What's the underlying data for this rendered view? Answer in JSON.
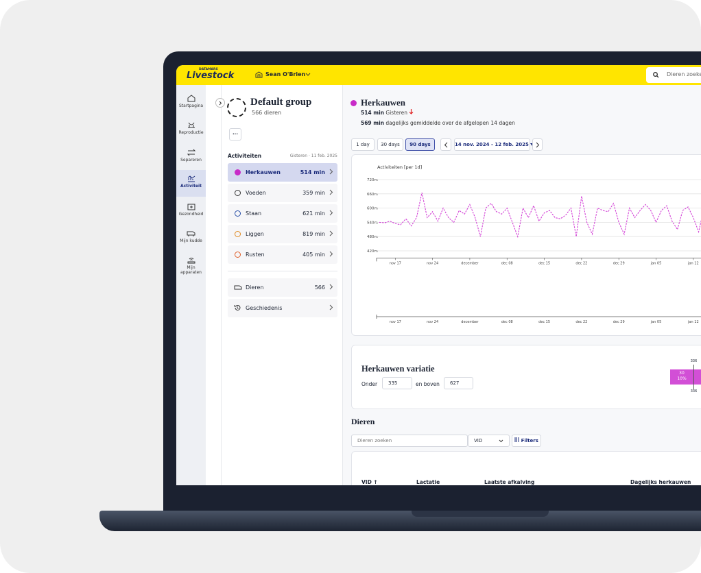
{
  "header": {
    "brand_top": "DATAMARS",
    "brand": "Livestock",
    "user": "Sean O'Brien",
    "search": "Dieren zoeken"
  },
  "nav": [
    "Startpagina",
    "Reproductie",
    "Separeren",
    "Activiteit",
    "Gezondheid",
    "Mijn kudde",
    "Mijn apparaten"
  ],
  "group": {
    "title": "Default group",
    "count": "566 dieren",
    "menu": "···"
  },
  "activities": {
    "title": "Activiteiten",
    "date": "Gisteren · 11 feb. 2025",
    "items": [
      {
        "label": "Herkauwen",
        "value": "514 min"
      },
      {
        "label": "Voeden",
        "value": "359 min"
      },
      {
        "label": "Staan",
        "value": "621 min"
      },
      {
        "label": "Liggen",
        "value": "819 min"
      },
      {
        "label": "Rusten",
        "value": "405 min"
      }
    ]
  },
  "links": [
    {
      "label": "Dieren",
      "value": "566"
    },
    {
      "label": "Geschiedenis"
    }
  ],
  "detail": {
    "title": "Herkauwen",
    "today_value": "514 min",
    "today_label": "Gisteren",
    "avg_value": "569 min",
    "avg_label": "dagelijks gemiddelde over de afgelopen 14 dagen",
    "ranges": [
      "1 day",
      "30 days",
      "90 days"
    ],
    "date_range": "14 nov. 2024 - 12 feb. 2025"
  },
  "chart_data": {
    "type": "line",
    "title": "Activiteiten [per 1d]",
    "color": "#d23fd6",
    "line_style": "dashed",
    "grid": true,
    "categories": [
      null,
      null,
      null,
      "nov 17",
      null,
      null,
      null,
      null,
      null,
      null,
      "nov 24",
      null,
      null,
      null,
      null,
      null,
      null,
      "december",
      null,
      null,
      null,
      null,
      null,
      null,
      "dec 08",
      null,
      null,
      null,
      null,
      null,
      null,
      "dec 15",
      null,
      null,
      null,
      null,
      null,
      null,
      "dec 22",
      null,
      null,
      null,
      null,
      null,
      null,
      "dec 29",
      null,
      null,
      null,
      null,
      null,
      null,
      "jan 05",
      null,
      null,
      null,
      null,
      null,
      null,
      "jan 12",
      null,
      null
    ],
    "values": [
      540,
      538,
      545,
      535,
      530,
      555,
      525,
      560,
      665,
      560,
      585,
      545,
      600,
      560,
      540,
      590,
      575,
      615,
      560,
      480,
      600,
      620,
      585,
      575,
      600,
      540,
      480,
      600,
      560,
      610,
      545,
      580,
      590,
      560,
      555,
      570,
      600,
      480,
      650,
      540,
      490,
      600,
      590,
      585,
      620,
      540,
      490,
      600,
      560,
      590,
      615,
      590,
      540,
      590,
      610,
      545,
      510,
      590,
      605,
      560,
      500,
      600
    ],
    "ylim": [
      390,
      720
    ],
    "yticks": [
      {
        "value": 420,
        "label": "420m"
      },
      {
        "value": 480,
        "label": "480m"
      },
      {
        "value": 540,
        "label": "540m"
      },
      {
        "value": 600,
        "label": "600m"
      },
      {
        "value": 660,
        "label": "660m"
      },
      {
        "value": 720,
        "label": "720m"
      }
    ]
  },
  "variation": {
    "title": "Herkauwen variatie",
    "below_label": "Onder",
    "below": "335",
    "above_label": "en boven",
    "above": "627",
    "bar_top": "336",
    "bar_value": "30",
    "bar_pct": "10%",
    "bar_bottom": "336"
  },
  "animals": {
    "title": "Dieren",
    "search": "Dieren zoeken",
    "id_select": "VID",
    "filters": "Filters",
    "columns": [
      "VID ↑",
      "Lactatie",
      "Laatste afkalving",
      "Dagelijks herkauwen"
    ]
  }
}
